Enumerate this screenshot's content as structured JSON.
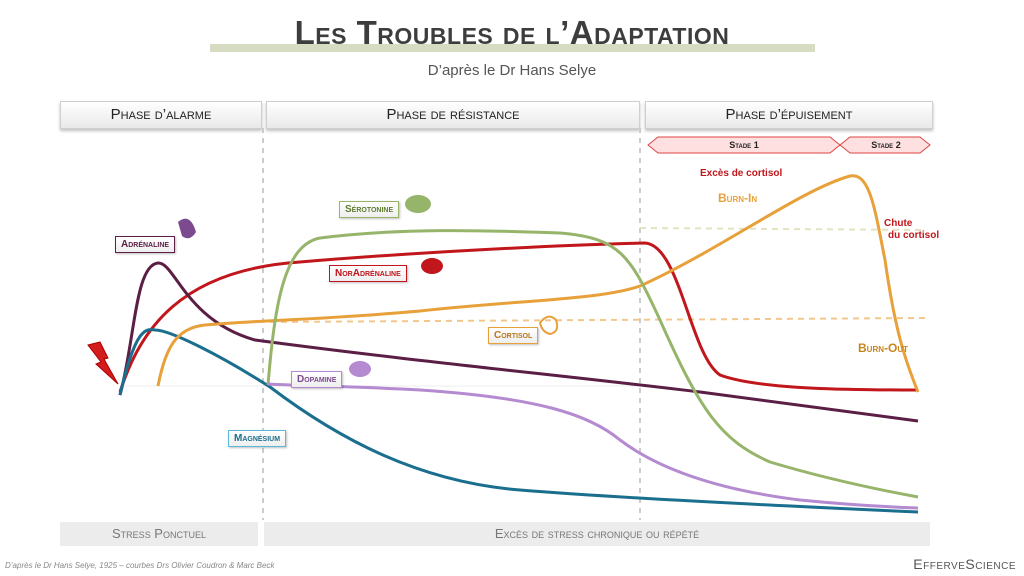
{
  "header": {
    "title": "Les Troubles de l’Adaptation",
    "subtitle": "D’après le Dr Hans Selye"
  },
  "phases": [
    {
      "label": "Phase d’alarme"
    },
    {
      "label": "Phase de résistance"
    },
    {
      "label": "Phase d’épuisement"
    }
  ],
  "stages": [
    {
      "label": "Stade 1"
    },
    {
      "label": "Stade 2"
    }
  ],
  "curves": {
    "adrenaline": {
      "label": "Adrénaline",
      "color": "#5b1e44",
      "icon": "purple-flask-icon"
    },
    "noradrenaline": {
      "label": "NorAdrénaline",
      "color": "#c0161c",
      "icon": "red-brain-icon"
    },
    "serotonine": {
      "label": "Sérotonine",
      "color": "#96b56a",
      "icon": "green-brain-icon"
    },
    "cortisol": {
      "label": "Cortisol",
      "color": "#e8a13a",
      "icon": "orange-adrenal-icon"
    },
    "dopamine": {
      "label": "Dopamine",
      "color": "#b48ad0",
      "icon": "purple-brain-icon"
    },
    "magnesium": {
      "label": "Magnésium",
      "color": "#1a6e8e"
    }
  },
  "annotations": {
    "exces_cortisol": "Excès de cortisol",
    "burn_in": "Burn-In",
    "chute_line1": "Chute",
    "chute_line2": "du cortisol",
    "burn_out": "Burn-Out"
  },
  "footer": {
    "left": "Stress Ponctuel",
    "right": "Excès de stress chronique ou répété"
  },
  "caption": "D’après le Dr Hans Selye, 1925 – courbes Drs Olivier Coudron & Marc Beck",
  "brand": "EfferveScience",
  "colors": {
    "lightning": "#d41c1c",
    "burn_in": "#e8a13a",
    "burn_out": "#c7861c",
    "exces": "#c0161c"
  }
}
